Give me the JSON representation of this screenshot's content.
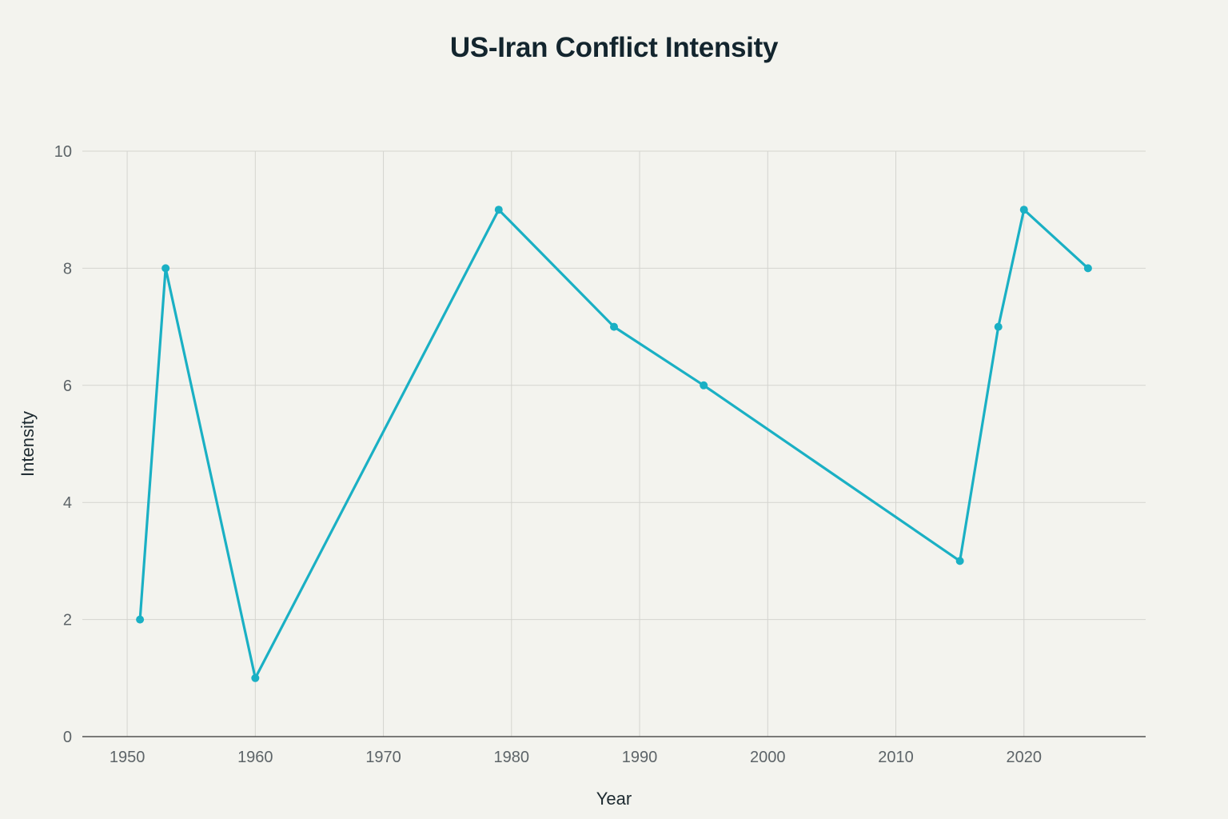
{
  "chart_data": {
    "type": "line",
    "title": "US-Iran Conflict Intensity",
    "xlabel": "Year",
    "ylabel": "Intensity",
    "xlim": [
      1946.5,
      2029.5
    ],
    "ylim": [
      0,
      10
    ],
    "xticks": [
      1950,
      1960,
      1970,
      1980,
      1990,
      2000,
      2010,
      2020
    ],
    "yticks": [
      0,
      2,
      4,
      6,
      8,
      10
    ],
    "grid": true,
    "legend": "none",
    "color": "#1ab0c4",
    "series": [
      {
        "x": [
          1951,
          1953,
          1960,
          1979,
          1988,
          1995,
          2015,
          2018,
          2020,
          2025
        ],
        "y": [
          2,
          8,
          1,
          9,
          7,
          6,
          3,
          7,
          9,
          8
        ]
      }
    ]
  }
}
